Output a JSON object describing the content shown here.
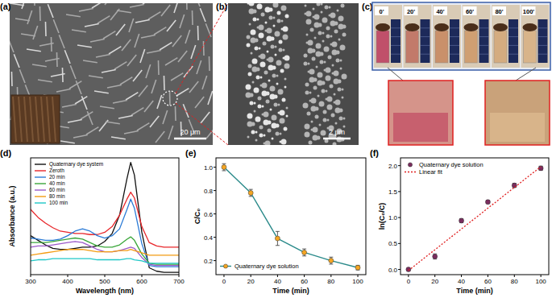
{
  "images": [
    {
      "label": "(a)",
      "scale_bar": "20 μm"
    },
    {
      "label": "(b)",
      "scale_bar": "2 μm"
    },
    {
      "label": "(c)",
      "times": [
        "0'",
        "20'",
        "40'",
        "60'",
        "80'",
        "100'"
      ]
    }
  ],
  "chart_data": [
    {
      "type": "line",
      "title": "(d)",
      "x_label": "Wavelength (nm)",
      "y_label": "Absorbance (a.u.)",
      "x": [
        300,
        320,
        340,
        360,
        380,
        400,
        420,
        440,
        460,
        480,
        500,
        520,
        540,
        560,
        570,
        580,
        600,
        620,
        640,
        660,
        680,
        700
      ],
      "xlim": [
        300,
        700
      ],
      "xticks": [
        300,
        400,
        500,
        600,
        700
      ],
      "ylim": [
        -0.02,
        1.0
      ],
      "tick_labels": "x",
      "legend": "upper left",
      "series": [
        {
          "name": "Quaternary dye system",
          "color": "#111111",
          "values": [
            0.32,
            0.28,
            0.24,
            0.21,
            0.2,
            0.2,
            0.21,
            0.22,
            0.22,
            0.23,
            0.27,
            0.34,
            0.5,
            0.82,
            0.96,
            0.85,
            0.35,
            0.04,
            0.01,
            0,
            0,
            0
          ]
        },
        {
          "name": "Zeroth",
          "color": "#e8262a",
          "values": [
            0.55,
            0.48,
            0.43,
            0.39,
            0.36,
            0.35,
            0.34,
            0.34,
            0.33,
            0.33,
            0.35,
            0.4,
            0.5,
            0.64,
            0.7,
            0.65,
            0.4,
            0.26,
            0.23,
            0.22,
            0.22,
            0.22
          ]
        },
        {
          "name": "20 min",
          "color": "#2b7bd6",
          "values": [
            0.3,
            0.29,
            0.28,
            0.28,
            0.29,
            0.32,
            0.36,
            0.38,
            0.36,
            0.32,
            0.3,
            0.32,
            0.38,
            0.55,
            0.64,
            0.56,
            0.25,
            0.06,
            0.05,
            0.05,
            0.05,
            0.05
          ]
        },
        {
          "name": "40 min",
          "color": "#3aa63a",
          "values": [
            0.26,
            0.26,
            0.26,
            0.27,
            0.28,
            0.29,
            0.3,
            0.29,
            0.26,
            0.23,
            0.22,
            0.22,
            0.24,
            0.29,
            0.31,
            0.28,
            0.16,
            0.08,
            0.07,
            0.07,
            0.07,
            0.07
          ]
        },
        {
          "name": "60 min",
          "color": "#9b59c9",
          "values": [
            0.22,
            0.23,
            0.23,
            0.24,
            0.25,
            0.26,
            0.27,
            0.26,
            0.23,
            0.2,
            0.18,
            0.18,
            0.19,
            0.21,
            0.22,
            0.21,
            0.13,
            0.07,
            0.06,
            0.06,
            0.06,
            0.06
          ]
        },
        {
          "name": "80 min",
          "color": "#f39c12",
          "values": [
            0.15,
            0.16,
            0.17,
            0.18,
            0.19,
            0.2,
            0.2,
            0.2,
            0.19,
            0.18,
            0.18,
            0.18,
            0.19,
            0.19,
            0.2,
            0.19,
            0.17,
            0.15,
            0.15,
            0.15,
            0.15,
            0.15
          ]
        },
        {
          "name": "100 min",
          "color": "#1fc7c7",
          "values": [
            0.1,
            0.11,
            0.11,
            0.12,
            0.12,
            0.12,
            0.12,
            0.12,
            0.12,
            0.11,
            0.11,
            0.11,
            0.11,
            0.12,
            0.12,
            0.11,
            0.1,
            0.08,
            0.08,
            0.08,
            0.08,
            0.08
          ]
        }
      ]
    },
    {
      "type": "line",
      "title": "(e)",
      "x_label": "Time (min)",
      "y_label": "C/C₀",
      "x": [
        0,
        20,
        40,
        60,
        80,
        100
      ],
      "xlim": [
        -6,
        106
      ],
      "xticks": [
        0,
        20,
        40,
        60,
        80,
        100
      ],
      "ylim": [
        0.08,
        1.08
      ],
      "yticks": [
        0.2,
        0.4,
        0.6,
        0.8,
        {
          "value": 1.0,
          "label": "1.0"
        }
      ],
      "legend": "lower left",
      "series": [
        {
          "name": "Quaternary dye solution",
          "color": "#f5a623",
          "marker": "circle",
          "values": [
            1.0,
            0.78,
            0.39,
            0.27,
            0.2,
            0.14
          ],
          "errors": [
            0.03,
            0.03,
            0.06,
            0.03,
            0.03,
            0.02
          ]
        }
      ]
    },
    {
      "type": "scatter",
      "title": "(f)",
      "x_label": "Time (min)",
      "y_label": "ln(C₀/C)",
      "x": [
        0,
        20,
        40,
        60,
        80,
        100
      ],
      "xlim": [
        -6,
        106
      ],
      "xticks": [
        0,
        20,
        40,
        60,
        80,
        100
      ],
      "ylim": [
        -0.1,
        2.15
      ],
      "yticks": [
        {
          "value": 0.0,
          "label": "0.0"
        },
        {
          "value": 0.5,
          "label": "0.5"
        },
        {
          "value": 1.0,
          "label": "1.0"
        },
        {
          "value": 1.5,
          "label": "1.5"
        },
        {
          "value": 2.0,
          "label": "2.0"
        }
      ],
      "legend": "upper left",
      "series": [
        {
          "name": "Quaternary dye solution",
          "color": "#7b2d5e",
          "marker": "circle",
          "values": [
            0,
            0.25,
            0.94,
            1.3,
            1.62,
            1.95
          ],
          "errors": [
            0.02,
            0.05,
            0.04,
            0.03,
            0.04,
            0.04
          ]
        },
        {
          "name": "Linear fit",
          "type": "line",
          "color": "#e02020",
          "line_style": "dotted",
          "x": [
            0,
            100
          ],
          "values": [
            -0.02,
            1.98
          ]
        }
      ]
    }
  ]
}
